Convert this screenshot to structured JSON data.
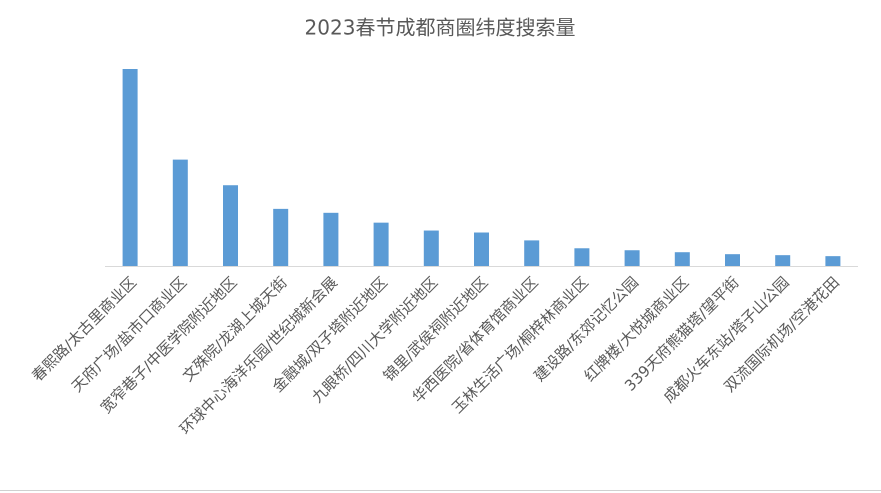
{
  "chart_data": {
    "type": "bar",
    "title": "2023春节成都商圈纬度搜索量",
    "categories": [
      "春熙路/太古里商业区",
      "天府广场/盐市口商业区",
      "宽窄巷子/中医学院附近地区",
      "文殊院/龙湖上城天街",
      "环球中心海洋乐园/世纪城新会展",
      "金融城/双子塔附近地区",
      "九眼桥/四川大学附近地区",
      "锦里/武侯祠附近地区",
      "华西医院/省体育馆商业区",
      "玉林生活广场/桐梓林商业区",
      "建设路/东郊记忆公园",
      "红牌楼/大悦城商业区",
      "339天府熊猫塔/望平街",
      "成都火车东站/塔子山公园",
      "双流国际机场/空港花田"
    ],
    "values": [
      100,
      54,
      41,
      29,
      27,
      22,
      18,
      17,
      13,
      9,
      8,
      7,
      6,
      5.5,
      5
    ],
    "color": "#5b9bd5"
  }
}
